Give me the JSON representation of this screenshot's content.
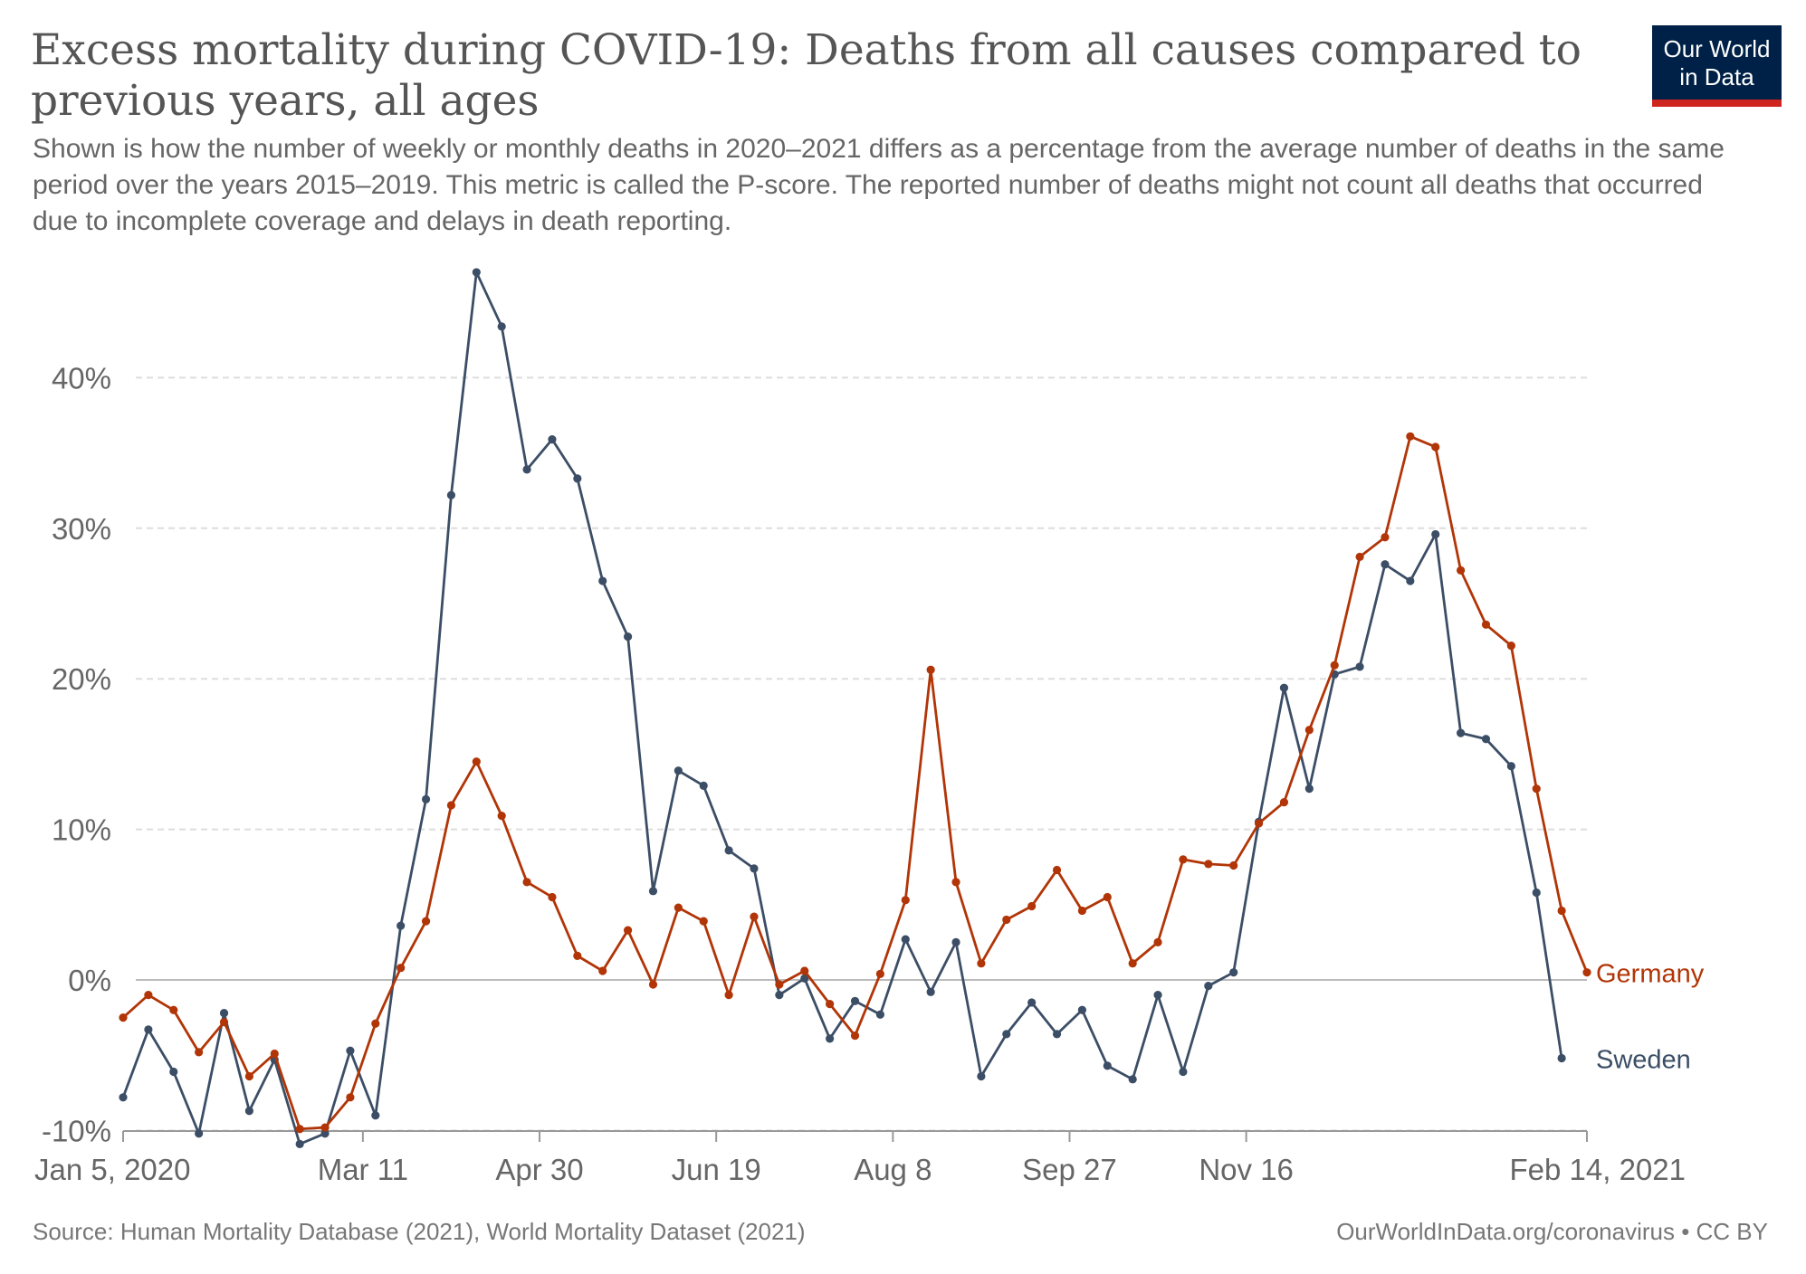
{
  "title": "Excess mortality during COVID-19: Deaths from all causes compared to previous years, all ages",
  "subtitle": "Shown is how the number of weekly or monthly deaths in 2020–2021 differs as a percentage from the average number of deaths in the same period over the years 2015–2019. This metric is called the P-score. The reported number of deaths might not count all deaths that occurred due to incomplete coverage and delays in death reporting.",
  "logo": {
    "line1": "Our World",
    "line2": "in Data"
  },
  "footer": {
    "source": "Source: Human Mortality Database (2021), World Mortality Dataset (2021)",
    "credit": "OurWorldInData.org/coronavirus • CC BY"
  },
  "chart_data": {
    "type": "line",
    "title": "Excess mortality during COVID-19: Deaths from all causes compared to previous years, all ages",
    "xlabel": "",
    "ylabel": "",
    "ylim": [
      -10,
      47
    ],
    "grid": true,
    "legend": "inline-right",
    "y_ticks": [
      {
        "value": -10,
        "label": "-10%"
      },
      {
        "value": 0,
        "label": "0%"
      },
      {
        "value": 10,
        "label": "10%"
      },
      {
        "value": 20,
        "label": "20%"
      },
      {
        "value": 30,
        "label": "30%"
      },
      {
        "value": 40,
        "label": "40%"
      }
    ],
    "x_ticks": [
      {
        "index": 0,
        "label": "Jan 5, 2020"
      },
      {
        "index": 9.5,
        "label": "Mar 11"
      },
      {
        "index": 16.5,
        "label": "Apr 30"
      },
      {
        "index": 23.5,
        "label": "Jun 19"
      },
      {
        "index": 30.5,
        "label": "Aug 8"
      },
      {
        "index": 37.5,
        "label": "Sep 27"
      },
      {
        "index": 44.5,
        "label": "Nov 16"
      },
      {
        "index": 58,
        "label": "Feb 14, 2021"
      }
    ],
    "series": [
      {
        "name": "Germany",
        "color": "#b13507",
        "values": [
          -2.5,
          -1.0,
          -2.0,
          -4.8,
          -2.8,
          -6.4,
          -4.9,
          -9.9,
          -9.8,
          -7.8,
          -2.9,
          0.8,
          3.9,
          11.6,
          14.5,
          10.9,
          6.5,
          5.5,
          1.6,
          0.6,
          3.3,
          -0.3,
          4.8,
          3.9,
          -1.0,
          4.2,
          -0.3,
          0.6,
          -1.6,
          -3.7,
          0.4,
          5.3,
          20.6,
          6.5,
          1.1,
          4.0,
          4.9,
          7.3,
          4.6,
          5.5,
          1.1,
          2.5,
          8.0,
          7.7,
          7.6,
          10.4,
          11.8,
          16.6,
          20.9,
          28.1,
          29.4,
          36.1,
          35.4,
          27.2,
          23.6,
          22.2,
          12.7,
          4.6,
          0.5
        ]
      },
      {
        "name": "Sweden",
        "color": "#3c4e66",
        "values": [
          -7.8,
          -3.3,
          -6.1,
          -10.2,
          -2.2,
          -8.7,
          -5.3,
          -10.9,
          -10.2,
          -4.7,
          -9.0,
          3.6,
          12.0,
          32.2,
          47.0,
          43.4,
          33.9,
          35.9,
          33.3,
          26.5,
          22.8,
          5.9,
          13.9,
          12.9,
          8.6,
          7.4,
          -1.0,
          0.1,
          -3.9,
          -1.4,
          -2.3,
          2.7,
          -0.8,
          2.5,
          -6.4,
          -3.6,
          -1.5,
          -3.6,
          -2.0,
          -5.7,
          -6.6,
          -1.0,
          -6.1,
          -0.4,
          0.5,
          10.5,
          19.4,
          12.7,
          20.3,
          20.8,
          27.6,
          26.5,
          29.6,
          16.4,
          16.0,
          14.2,
          5.8,
          -5.2,
          null
        ]
      }
    ]
  }
}
